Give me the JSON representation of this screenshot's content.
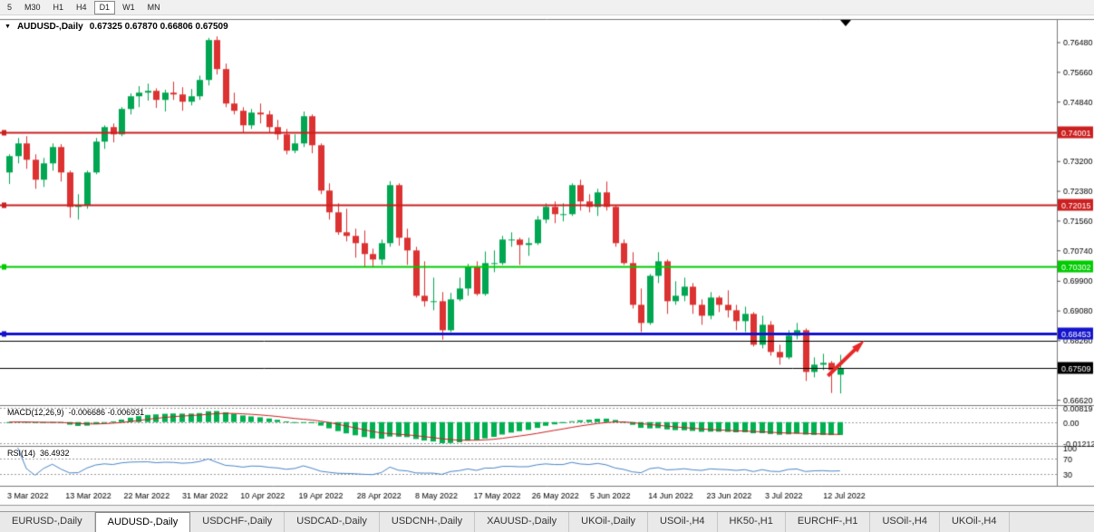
{
  "toolbar": {
    "timeframes": [
      {
        "label": "5",
        "active": false
      },
      {
        "label": "M30",
        "active": false
      },
      {
        "label": "H1",
        "active": false
      },
      {
        "label": "H4",
        "active": false
      },
      {
        "label": "D1",
        "active": true
      },
      {
        "label": "W1",
        "active": false
      },
      {
        "label": "MN",
        "active": false
      }
    ]
  },
  "chart": {
    "dropdown_icon": "▼",
    "symbol": "AUDUSD-,Daily",
    "ohlc": "0.67325 0.67870 0.66806 0.67509"
  },
  "chart_data": {
    "type": "candlestick",
    "symbol": "AUDUSD-",
    "timeframe": "Daily",
    "price_range": {
      "top": 0.7713,
      "bottom": 0.6651
    },
    "y_axis_ticks": [
      "0.76480",
      "0.75660",
      "0.74840",
      "0.73200",
      "0.72380",
      "0.71560",
      "0.70740",
      "0.69900",
      "0.69080",
      "0.68260",
      "0.66620"
    ],
    "hlines": [
      {
        "price": 0.74001,
        "label": "0.74001",
        "color": "#cc2020",
        "width": 2,
        "marker": true
      },
      {
        "price": 0.72015,
        "label": "0.72015",
        "color": "#cc2020",
        "width": 2,
        "marker": true
      },
      {
        "price": 0.70302,
        "label": "0.70302",
        "color": "#00cc00",
        "width": 2,
        "marker": true
      },
      {
        "price": 0.68453,
        "label": "0.68453",
        "color": "#1414cc",
        "width": 3,
        "marker": true
      },
      {
        "price": 0.6826,
        "label": "",
        "color": "#000000",
        "width": 1,
        "marker": false
      },
      {
        "price": 0.67509,
        "label": "0.67509",
        "color": "#000000",
        "width": 1,
        "marker": false
      }
    ],
    "arrow": {
      "from_index": 94.6,
      "from_price": 0.6729,
      "to_index": 98.3,
      "to_price": 0.6815,
      "color": "#e82828",
      "width": 4
    },
    "dates": [
      "3 Mar 2022",
      "13 Mar 2022",
      "22 Mar 2022",
      "31 Mar 2022",
      "10 Apr 2022",
      "19 Apr 2022",
      "28 Apr 2022",
      "8 May 2022",
      "17 May 2022",
      "26 May 2022",
      "5 Jun 2022",
      "14 Jun 2022",
      "23 Jun 2022",
      "3 Jul 2022",
      "12 Jul 2022"
    ],
    "colors": {
      "up": "#00a651",
      "down": "#dc3232",
      "macd_hist": "#00b050",
      "macd_signal": "#cc2020",
      "rsi_line": "#4a86c8"
    },
    "candles": [
      [
        0.729,
        0.734,
        0.7258,
        0.7335
      ],
      [
        0.7335,
        0.7385,
        0.7315,
        0.737
      ],
      [
        0.737,
        0.739,
        0.73,
        0.7325
      ],
      [
        0.7325,
        0.734,
        0.7245,
        0.727
      ],
      [
        0.727,
        0.733,
        0.725,
        0.7315
      ],
      [
        0.7315,
        0.737,
        0.7295,
        0.736
      ],
      [
        0.736,
        0.7368,
        0.7265,
        0.729
      ],
      [
        0.729,
        0.7295,
        0.7165,
        0.7195
      ],
      [
        0.7195,
        0.723,
        0.716,
        0.72
      ],
      [
        0.72,
        0.7295,
        0.719,
        0.729
      ],
      [
        0.729,
        0.7385,
        0.7285,
        0.7375
      ],
      [
        0.7375,
        0.742,
        0.7355,
        0.7415
      ],
      [
        0.7415,
        0.7425,
        0.7373,
        0.7395
      ],
      [
        0.7395,
        0.747,
        0.739,
        0.7465
      ],
      [
        0.7465,
        0.7508,
        0.745,
        0.75
      ],
      [
        0.75,
        0.7528,
        0.747,
        0.751
      ],
      [
        0.751,
        0.7535,
        0.7488,
        0.7515
      ],
      [
        0.7515,
        0.7522,
        0.7468,
        0.749
      ],
      [
        0.749,
        0.7518,
        0.7458,
        0.751
      ],
      [
        0.751,
        0.754,
        0.749,
        0.7505
      ],
      [
        0.7505,
        0.7525,
        0.746,
        0.7485
      ],
      [
        0.7485,
        0.752,
        0.7475,
        0.75
      ],
      [
        0.75,
        0.7557,
        0.749,
        0.7545
      ],
      [
        0.7545,
        0.7661,
        0.753,
        0.7655
      ],
      [
        0.7655,
        0.7665,
        0.756,
        0.7575
      ],
      [
        0.7575,
        0.759,
        0.747,
        0.748
      ],
      [
        0.748,
        0.751,
        0.745,
        0.746
      ],
      [
        0.746,
        0.747,
        0.74,
        0.742
      ],
      [
        0.742,
        0.7465,
        0.741,
        0.7455
      ],
      [
        0.7455,
        0.748,
        0.7425,
        0.745
      ],
      [
        0.745,
        0.746,
        0.74,
        0.7415
      ],
      [
        0.7415,
        0.7435,
        0.738,
        0.7395
      ],
      [
        0.7395,
        0.741,
        0.734,
        0.735
      ],
      [
        0.735,
        0.7395,
        0.7343,
        0.737
      ],
      [
        0.737,
        0.7458,
        0.736,
        0.7445
      ],
      [
        0.7445,
        0.745,
        0.7343,
        0.7365
      ],
      [
        0.7365,
        0.737,
        0.723,
        0.724
      ],
      [
        0.724,
        0.726,
        0.716,
        0.718
      ],
      [
        0.718,
        0.7205,
        0.7118,
        0.7125
      ],
      [
        0.7125,
        0.719,
        0.71,
        0.7115
      ],
      [
        0.7115,
        0.7135,
        0.7055,
        0.7095
      ],
      [
        0.7095,
        0.713,
        0.703,
        0.7065
      ],
      [
        0.7065,
        0.708,
        0.7028,
        0.705
      ],
      [
        0.705,
        0.7105,
        0.7035,
        0.7095
      ],
      [
        0.7095,
        0.7266,
        0.7085,
        0.7255
      ],
      [
        0.7255,
        0.726,
        0.7088,
        0.711
      ],
      [
        0.711,
        0.7135,
        0.7035,
        0.7075
      ],
      [
        0.7075,
        0.7085,
        0.6945,
        0.695
      ],
      [
        0.695,
        0.7045,
        0.692,
        0.6935
      ],
      [
        0.6935,
        0.7,
        0.691,
        0.6935
      ],
      [
        0.6935,
        0.696,
        0.6829,
        0.6855
      ],
      [
        0.6855,
        0.6958,
        0.685,
        0.694
      ],
      [
        0.694,
        0.7,
        0.6935,
        0.697
      ],
      [
        0.697,
        0.7038,
        0.695,
        0.703
      ],
      [
        0.703,
        0.7045,
        0.695,
        0.6955
      ],
      [
        0.6955,
        0.7072,
        0.695,
        0.704
      ],
      [
        0.704,
        0.7075,
        0.7015,
        0.704
      ],
      [
        0.704,
        0.7115,
        0.7035,
        0.7105
      ],
      [
        0.7105,
        0.7125,
        0.7085,
        0.7105
      ],
      [
        0.7105,
        0.711,
        0.7035,
        0.709
      ],
      [
        0.709,
        0.711,
        0.706,
        0.7095
      ],
      [
        0.7095,
        0.717,
        0.709,
        0.716
      ],
      [
        0.716,
        0.7205,
        0.715,
        0.7195
      ],
      [
        0.7195,
        0.721,
        0.715,
        0.7175
      ],
      [
        0.7175,
        0.7205,
        0.7155,
        0.7175
      ],
      [
        0.7175,
        0.726,
        0.717,
        0.7255
      ],
      [
        0.7255,
        0.727,
        0.7185,
        0.721
      ],
      [
        0.721,
        0.723,
        0.718,
        0.7195
      ],
      [
        0.7195,
        0.7245,
        0.717,
        0.7235
      ],
      [
        0.7235,
        0.7265,
        0.7185,
        0.7195
      ],
      [
        0.7195,
        0.72,
        0.7085,
        0.7095
      ],
      [
        0.7095,
        0.7105,
        0.7035,
        0.704
      ],
      [
        0.704,
        0.707,
        0.6915,
        0.6925
      ],
      [
        0.6925,
        0.697,
        0.685,
        0.6875
      ],
      [
        0.6875,
        0.701,
        0.687,
        0.7005
      ],
      [
        0.7005,
        0.707,
        0.6985,
        0.7045
      ],
      [
        0.7045,
        0.705,
        0.69,
        0.6935
      ],
      [
        0.6935,
        0.699,
        0.6925,
        0.695
      ],
      [
        0.695,
        0.7,
        0.6935,
        0.6975
      ],
      [
        0.6975,
        0.6985,
        0.69,
        0.6925
      ],
      [
        0.6925,
        0.694,
        0.687,
        0.6895
      ],
      [
        0.6895,
        0.696,
        0.6885,
        0.6945
      ],
      [
        0.6945,
        0.695,
        0.6905,
        0.6925
      ],
      [
        0.6925,
        0.6965,
        0.689,
        0.691
      ],
      [
        0.691,
        0.6925,
        0.6855,
        0.688
      ],
      [
        0.688,
        0.692,
        0.685,
        0.69
      ],
      [
        0.69,
        0.6905,
        0.681,
        0.6815
      ],
      [
        0.6815,
        0.6895,
        0.6805,
        0.687
      ],
      [
        0.687,
        0.688,
        0.6785,
        0.6795
      ],
      [
        0.6795,
        0.6815,
        0.676,
        0.678
      ],
      [
        0.678,
        0.6855,
        0.6775,
        0.684
      ],
      [
        0.684,
        0.6875,
        0.683,
        0.6855
      ],
      [
        0.6855,
        0.686,
        0.6715,
        0.674
      ],
      [
        0.674,
        0.678,
        0.6725,
        0.676
      ],
      [
        0.676,
        0.679,
        0.6745,
        0.6765
      ],
      [
        0.6765,
        0.677,
        0.6682,
        0.6745
      ],
      [
        0.67325,
        0.6787,
        0.66806,
        0.67509
      ]
    ],
    "macd": {
      "label": "MACD(12,26,9)",
      "values_text": "-0.006686 -0.006931",
      "params": [
        12,
        26,
        9
      ],
      "axis": [
        "0.00819",
        "0.00",
        "-0.01212"
      ],
      "range": {
        "max": 0.00819,
        "min": -0.01212
      }
    },
    "rsi": {
      "label": "RSI(14)",
      "value_text": "36.4932",
      "period": 14,
      "axis": [
        "100",
        "70",
        "30"
      ],
      "levels": [
        70,
        30
      ]
    }
  },
  "tabs": [
    {
      "label": "EURUSD-,Daily",
      "active": false
    },
    {
      "label": "AUDUSD-,Daily",
      "active": true
    },
    {
      "label": "USDCHF-,Daily",
      "active": false
    },
    {
      "label": "USDCAD-,Daily",
      "active": false
    },
    {
      "label": "USDCNH-,Daily",
      "active": false
    },
    {
      "label": "XAUUSD-,Daily",
      "active": false
    },
    {
      "label": "UKOil-,Daily",
      "active": false
    },
    {
      "label": "USOil-,H4",
      "active": false
    },
    {
      "label": "HK50-,H1",
      "active": false
    },
    {
      "label": "EURCHF-,H1",
      "active": false
    },
    {
      "label": "USOil-,H4",
      "active": false
    },
    {
      "label": "UKOil-,H4",
      "active": false
    }
  ]
}
